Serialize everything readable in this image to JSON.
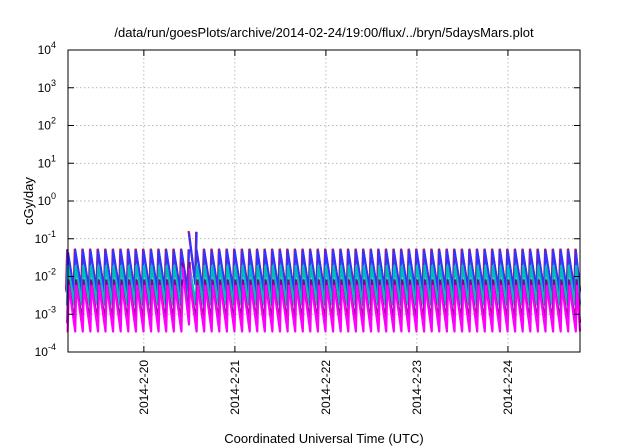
{
  "chart_data": {
    "type": "line",
    "title": "/data/run/goesPlots/archive/2014-02-24/19:00/flux/../bryn/5daysMars.plot",
    "xlabel": "Coordinated Universal Time (UTC)",
    "ylabel": "cGy/day",
    "y_scale": "log",
    "ylim": [
      0.0001,
      10000
    ],
    "y_ticks": [
      {
        "base": "10",
        "exp": "-4",
        "value": 0.0001
      },
      {
        "base": "10",
        "exp": "-3",
        "value": 0.001
      },
      {
        "base": "10",
        "exp": "-2",
        "value": 0.01
      },
      {
        "base": "10",
        "exp": "-1",
        "value": 0.1
      },
      {
        "base": "10",
        "exp": "0",
        "value": 1
      },
      {
        "base": "10",
        "exp": "1",
        "value": 10
      },
      {
        "base": "10",
        "exp": "2",
        "value": 100
      },
      {
        "base": "10",
        "exp": "3",
        "value": 1000
      },
      {
        "base": "10",
        "exp": "4",
        "value": 10000
      }
    ],
    "x_type": "date",
    "xlim": [
      "2014-02-19 04:00",
      "2014-02-24 19:00"
    ],
    "x_ticks": [
      {
        "label": "2014-2-20",
        "value": "2014-02-20 00:00"
      },
      {
        "label": "2014-2-21",
        "value": "2014-02-21 00:00"
      },
      {
        "label": "2014-2-22",
        "value": "2014-02-22 00:00"
      },
      {
        "label": "2014-2-23",
        "value": "2014-02-23 00:00"
      },
      {
        "label": "2014-2-24",
        "value": "2014-02-24 00:00"
      }
    ],
    "grid": true,
    "legend": "none",
    "sawtooth_period_hours": 2,
    "series": [
      {
        "color": "#ff0000",
        "peak": 0.055,
        "trough": 0.0045
      },
      {
        "color": "#3333ff",
        "peak": 0.05,
        "trough": 0.004
      },
      {
        "color": "#00bbbb",
        "peak": 0.02,
        "trough": 0.0018
      },
      {
        "color": "#8b008b",
        "peak": 0.008,
        "trough": 0.0006
      },
      {
        "color": "#ff00ff",
        "peak": 0.006,
        "trough": 0.00035
      }
    ],
    "event": {
      "time": "2014-02-20 11:00",
      "peak": 0.16
    }
  }
}
